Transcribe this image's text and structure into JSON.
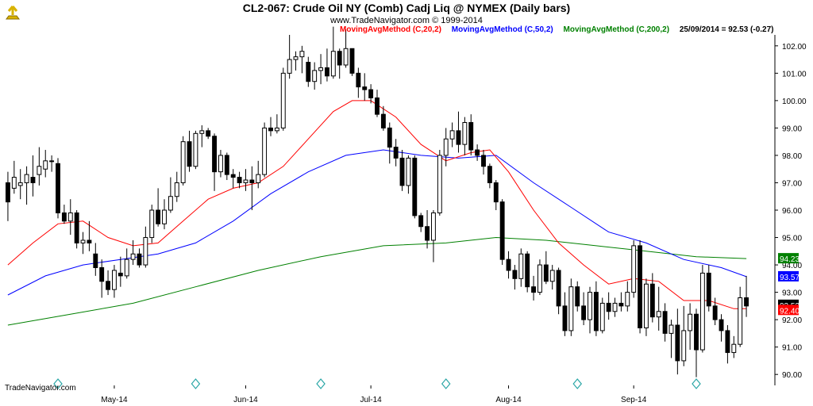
{
  "title": "CL2-067:  Crude Oil NY (Comb) Cadj Liq @ NYMEX  (Daily bars)",
  "copyright": "www.TradeNavigator.com © 1999-2014",
  "legend": {
    "ma20": "MovingAvgMethod (C,20,2)",
    "ma50": "MovingAvgMethod (C,50,2)",
    "ma200": "MovingAvgMethod (C,200,2)",
    "last": "25/09/2014 = 92.53 (-0.27)"
  },
  "watermark": "TradeNavigator.com",
  "colors": {
    "ma20": "#ff0000",
    "ma50": "#0000ff",
    "ma200": "#008000",
    "candle": "#000000",
    "tag20": "#ff0000",
    "tag50": "#0000ff",
    "tag200": "#008000"
  },
  "chart_data": {
    "type": "candlestick",
    "title": "CL2-067:  Crude Oil NY (Comb) Cadj Liq @ NYMEX  (Daily bars)",
    "ylim": [
      89.6,
      102.4
    ],
    "y_ticks": [
      90.0,
      91.0,
      92.0,
      93.0,
      94.0,
      95.0,
      96.0,
      97.0,
      98.0,
      99.0,
      100.0,
      101.0,
      102.0
    ],
    "x_labels": [
      {
        "label": "May-14",
        "index": 17
      },
      {
        "label": "Jun-14",
        "index": 38
      },
      {
        "label": "Jul-14",
        "index": 58
      },
      {
        "label": "Aug-14",
        "index": 80
      },
      {
        "label": "Sep-14",
        "index": 100
      }
    ],
    "last_value_tags": [
      {
        "series": "ma200",
        "value": 94.23
      },
      {
        "series": "ma50",
        "value": 93.57
      },
      {
        "series": "close",
        "value": 92.53
      },
      {
        "series": "ma20",
        "value": 92.4
      }
    ],
    "candles": [
      {
        "o": 97.0,
        "h": 97.4,
        "l": 95.6,
        "c": 96.3
      },
      {
        "o": 96.8,
        "h": 97.8,
        "l": 96.6,
        "c": 97.2
      },
      {
        "o": 96.9,
        "h": 97.5,
        "l": 96.4,
        "c": 97.0
      },
      {
        "o": 97.0,
        "h": 97.6,
        "l": 96.2,
        "c": 97.3
      },
      {
        "o": 97.2,
        "h": 98.0,
        "l": 96.5,
        "c": 97.0
      },
      {
        "o": 97.3,
        "h": 98.3,
        "l": 96.9,
        "c": 97.6
      },
      {
        "o": 97.5,
        "h": 98.2,
        "l": 97.2,
        "c": 97.8
      },
      {
        "o": 97.8,
        "h": 98.0,
        "l": 97.4,
        "c": 97.8
      },
      {
        "o": 97.7,
        "h": 97.9,
        "l": 95.7,
        "c": 95.9
      },
      {
        "o": 95.9,
        "h": 96.2,
        "l": 95.5,
        "c": 95.6
      },
      {
        "o": 95.6,
        "h": 96.4,
        "l": 95.1,
        "c": 95.9
      },
      {
        "o": 95.9,
        "h": 96.0,
        "l": 94.6,
        "c": 94.8
      },
      {
        "o": 94.8,
        "h": 95.2,
        "l": 94.4,
        "c": 94.9
      },
      {
        "o": 94.9,
        "h": 95.6,
        "l": 94.5,
        "c": 94.8
      },
      {
        "o": 94.4,
        "h": 94.8,
        "l": 93.6,
        "c": 93.9
      },
      {
        "o": 93.9,
        "h": 94.2,
        "l": 92.8,
        "c": 93.4
      },
      {
        "o": 93.4,
        "h": 93.8,
        "l": 92.9,
        "c": 93.1
      },
      {
        "o": 93.1,
        "h": 94.0,
        "l": 92.8,
        "c": 93.8
      },
      {
        "o": 93.7,
        "h": 94.3,
        "l": 93.2,
        "c": 93.6
      },
      {
        "o": 93.6,
        "h": 94.6,
        "l": 93.5,
        "c": 94.2
      },
      {
        "o": 94.2,
        "h": 94.9,
        "l": 94.0,
        "c": 94.4
      },
      {
        "o": 94.4,
        "h": 94.6,
        "l": 93.9,
        "c": 94.0
      },
      {
        "o": 94.0,
        "h": 95.4,
        "l": 93.9,
        "c": 95.0
      },
      {
        "o": 95.0,
        "h": 96.2,
        "l": 94.8,
        "c": 96.0
      },
      {
        "o": 96.0,
        "h": 96.8,
        "l": 95.4,
        "c": 95.5
      },
      {
        "o": 95.5,
        "h": 96.4,
        "l": 95.3,
        "c": 96.0
      },
      {
        "o": 96.0,
        "h": 97.2,
        "l": 95.9,
        "c": 96.5
      },
      {
        "o": 96.5,
        "h": 97.4,
        "l": 96.3,
        "c": 97.0
      },
      {
        "o": 97.0,
        "h": 98.7,
        "l": 96.9,
        "c": 98.5
      },
      {
        "o": 98.5,
        "h": 98.9,
        "l": 97.4,
        "c": 97.6
      },
      {
        "o": 97.6,
        "h": 98.9,
        "l": 97.5,
        "c": 98.8
      },
      {
        "o": 98.8,
        "h": 99.1,
        "l": 98.3,
        "c": 98.9
      },
      {
        "o": 98.9,
        "h": 99.0,
        "l": 98.6,
        "c": 98.7
      },
      {
        "o": 98.7,
        "h": 98.8,
        "l": 96.7,
        "c": 97.4
      },
      {
        "o": 97.4,
        "h": 98.2,
        "l": 97.2,
        "c": 98.0
      },
      {
        "o": 98.0,
        "h": 98.1,
        "l": 97.1,
        "c": 97.3
      },
      {
        "o": 97.3,
        "h": 97.5,
        "l": 96.8,
        "c": 97.2
      },
      {
        "o": 97.2,
        "h": 97.4,
        "l": 96.8,
        "c": 97.0
      },
      {
        "o": 97.0,
        "h": 97.5,
        "l": 96.7,
        "c": 97.1
      },
      {
        "o": 97.1,
        "h": 97.6,
        "l": 96.0,
        "c": 97.0
      },
      {
        "o": 97.0,
        "h": 97.8,
        "l": 96.8,
        "c": 97.3
      },
      {
        "o": 97.3,
        "h": 99.2,
        "l": 97.2,
        "c": 99.0
      },
      {
        "o": 99.0,
        "h": 99.4,
        "l": 98.7,
        "c": 98.9
      },
      {
        "o": 98.9,
        "h": 99.5,
        "l": 98.8,
        "c": 99.0
      },
      {
        "o": 99.0,
        "h": 101.2,
        "l": 98.9,
        "c": 101.0
      },
      {
        "o": 101.0,
        "h": 102.4,
        "l": 100.8,
        "c": 101.5
      },
      {
        "o": 101.5,
        "h": 101.8,
        "l": 101.1,
        "c": 101.6
      },
      {
        "o": 101.6,
        "h": 102.0,
        "l": 101.0,
        "c": 101.8
      },
      {
        "o": 101.4,
        "h": 101.6,
        "l": 100.5,
        "c": 100.7
      },
      {
        "o": 100.7,
        "h": 101.4,
        "l": 100.4,
        "c": 101.1
      },
      {
        "o": 101.1,
        "h": 101.7,
        "l": 100.6,
        "c": 101.2
      },
      {
        "o": 101.2,
        "h": 101.9,
        "l": 100.7,
        "c": 100.9
      },
      {
        "o": 100.9,
        "h": 102.7,
        "l": 100.8,
        "c": 101.8
      },
      {
        "o": 101.8,
        "h": 101.9,
        "l": 100.8,
        "c": 101.3
      },
      {
        "o": 101.3,
        "h": 102.6,
        "l": 101.2,
        "c": 101.9
      },
      {
        "o": 101.9,
        "h": 101.9,
        "l": 100.9,
        "c": 101.0
      },
      {
        "o": 101.0,
        "h": 101.2,
        "l": 100.1,
        "c": 100.5
      },
      {
        "o": 100.5,
        "h": 101.0,
        "l": 100.0,
        "c": 100.4
      },
      {
        "o": 100.4,
        "h": 100.6,
        "l": 99.9,
        "c": 100.1
      },
      {
        "o": 100.1,
        "h": 100.4,
        "l": 99.4,
        "c": 99.5
      },
      {
        "o": 99.5,
        "h": 99.8,
        "l": 98.9,
        "c": 99.0
      },
      {
        "o": 99.0,
        "h": 99.2,
        "l": 97.7,
        "c": 98.3
      },
      {
        "o": 98.3,
        "h": 98.6,
        "l": 97.6,
        "c": 97.9
      },
      {
        "o": 97.9,
        "h": 98.2,
        "l": 96.7,
        "c": 96.9
      },
      {
        "o": 96.9,
        "h": 98.0,
        "l": 96.6,
        "c": 97.9
      },
      {
        "o": 97.9,
        "h": 98.0,
        "l": 95.7,
        "c": 95.8
      },
      {
        "o": 95.8,
        "h": 95.9,
        "l": 95.2,
        "c": 95.4
      },
      {
        "o": 95.4,
        "h": 96.0,
        "l": 94.6,
        "c": 94.9
      },
      {
        "o": 94.9,
        "h": 96.0,
        "l": 94.1,
        "c": 95.9
      },
      {
        "o": 95.9,
        "h": 98.2,
        "l": 95.8,
        "c": 98.0
      },
      {
        "o": 98.0,
        "h": 99.0,
        "l": 97.6,
        "c": 98.6
      },
      {
        "o": 98.6,
        "h": 99.2,
        "l": 98.3,
        "c": 98.9
      },
      {
        "o": 98.9,
        "h": 99.6,
        "l": 98.1,
        "c": 98.4
      },
      {
        "o": 98.4,
        "h": 99.4,
        "l": 98.0,
        "c": 99.2
      },
      {
        "o": 99.2,
        "h": 99.5,
        "l": 98.0,
        "c": 98.2
      },
      {
        "o": 98.2,
        "h": 98.4,
        "l": 97.8,
        "c": 98.0
      },
      {
        "o": 98.0,
        "h": 98.2,
        "l": 97.3,
        "c": 97.6
      },
      {
        "o": 97.6,
        "h": 97.7,
        "l": 96.8,
        "c": 97.0
      },
      {
        "o": 97.0,
        "h": 97.1,
        "l": 96.0,
        "c": 96.3
      },
      {
        "o": 96.3,
        "h": 96.4,
        "l": 94.0,
        "c": 94.2
      },
      {
        "o": 94.2,
        "h": 94.5,
        "l": 93.5,
        "c": 93.8
      },
      {
        "o": 93.8,
        "h": 94.0,
        "l": 93.1,
        "c": 93.5
      },
      {
        "o": 93.5,
        "h": 94.6,
        "l": 93.2,
        "c": 94.4
      },
      {
        "o": 94.4,
        "h": 94.5,
        "l": 93.0,
        "c": 93.2
      },
      {
        "o": 93.2,
        "h": 93.6,
        "l": 92.7,
        "c": 93.0
      },
      {
        "o": 93.0,
        "h": 94.2,
        "l": 92.9,
        "c": 94.0
      },
      {
        "o": 94.0,
        "h": 94.5,
        "l": 93.3,
        "c": 93.4
      },
      {
        "o": 93.4,
        "h": 94.0,
        "l": 93.1,
        "c": 93.8
      },
      {
        "o": 93.8,
        "h": 93.9,
        "l": 92.2,
        "c": 92.5
      },
      {
        "o": 92.5,
        "h": 93.0,
        "l": 91.4,
        "c": 91.6
      },
      {
        "o": 91.6,
        "h": 93.5,
        "l": 91.4,
        "c": 93.2
      },
      {
        "o": 93.2,
        "h": 93.4,
        "l": 92.3,
        "c": 92.5
      },
      {
        "o": 92.5,
        "h": 93.0,
        "l": 91.8,
        "c": 92.0
      },
      {
        "o": 92.0,
        "h": 93.2,
        "l": 91.5,
        "c": 93.0
      },
      {
        "o": 93.0,
        "h": 93.4,
        "l": 91.4,
        "c": 91.6
      },
      {
        "o": 91.6,
        "h": 92.8,
        "l": 91.5,
        "c": 92.6
      },
      {
        "o": 92.6,
        "h": 93.0,
        "l": 92.0,
        "c": 92.3
      },
      {
        "o": 92.3,
        "h": 92.8,
        "l": 92.1,
        "c": 92.6
      },
      {
        "o": 92.6,
        "h": 93.0,
        "l": 92.3,
        "c": 92.5
      },
      {
        "o": 92.5,
        "h": 93.4,
        "l": 92.3,
        "c": 93.0
      },
      {
        "o": 93.0,
        "h": 94.9,
        "l": 92.8,
        "c": 94.7
      },
      {
        "o": 94.7,
        "h": 94.9,
        "l": 91.5,
        "c": 91.7
      },
      {
        "o": 91.7,
        "h": 93.5,
        "l": 91.4,
        "c": 93.3
      },
      {
        "o": 93.3,
        "h": 93.7,
        "l": 91.9,
        "c": 92.1
      },
      {
        "o": 92.1,
        "h": 93.2,
        "l": 91.6,
        "c": 92.3
      },
      {
        "o": 92.3,
        "h": 92.6,
        "l": 91.2,
        "c": 91.5
      },
      {
        "o": 91.5,
        "h": 92.0,
        "l": 90.6,
        "c": 91.8
      },
      {
        "o": 91.8,
        "h": 92.4,
        "l": 90.0,
        "c": 90.5
      },
      {
        "o": 90.5,
        "h": 92.5,
        "l": 90.3,
        "c": 91.6
      },
      {
        "o": 91.6,
        "h": 92.6,
        "l": 90.9,
        "c": 92.2
      },
      {
        "o": 92.2,
        "h": 92.4,
        "l": 89.9,
        "c": 90.9
      },
      {
        "o": 90.9,
        "h": 94.0,
        "l": 90.8,
        "c": 93.7
      },
      {
        "o": 93.7,
        "h": 94.0,
        "l": 92.3,
        "c": 92.5
      },
      {
        "o": 92.5,
        "h": 92.8,
        "l": 91.8,
        "c": 92.0
      },
      {
        "o": 92.0,
        "h": 92.2,
        "l": 91.2,
        "c": 91.6
      },
      {
        "o": 91.6,
        "h": 91.8,
        "l": 90.4,
        "c": 90.8
      },
      {
        "o": 90.8,
        "h": 91.4,
        "l": 90.6,
        "c": 91.1
      },
      {
        "o": 91.1,
        "h": 93.2,
        "l": 91.0,
        "c": 92.8
      },
      {
        "o": 92.8,
        "h": 93.6,
        "l": 92.1,
        "c": 92.5
      }
    ],
    "ma20": [
      {
        "i": 0,
        "v": 94.0
      },
      {
        "i": 4,
        "v": 94.8
      },
      {
        "i": 8,
        "v": 95.5
      },
      {
        "i": 12,
        "v": 95.6
      },
      {
        "i": 16,
        "v": 95.0
      },
      {
        "i": 20,
        "v": 94.7
      },
      {
        "i": 24,
        "v": 94.8
      },
      {
        "i": 28,
        "v": 95.6
      },
      {
        "i": 32,
        "v": 96.4
      },
      {
        "i": 36,
        "v": 96.8
      },
      {
        "i": 40,
        "v": 97.0
      },
      {
        "i": 44,
        "v": 97.6
      },
      {
        "i": 48,
        "v": 98.6
      },
      {
        "i": 52,
        "v": 99.6
      },
      {
        "i": 55,
        "v": 100.0
      },
      {
        "i": 58,
        "v": 100.0
      },
      {
        "i": 62,
        "v": 99.4
      },
      {
        "i": 66,
        "v": 98.4
      },
      {
        "i": 70,
        "v": 97.8
      },
      {
        "i": 74,
        "v": 98.1
      },
      {
        "i": 77,
        "v": 98.2
      },
      {
        "i": 80,
        "v": 97.4
      },
      {
        "i": 84,
        "v": 96.0
      },
      {
        "i": 88,
        "v": 94.8
      },
      {
        "i": 92,
        "v": 94.0
      },
      {
        "i": 96,
        "v": 93.3
      },
      {
        "i": 100,
        "v": 93.5
      },
      {
        "i": 104,
        "v": 93.4
      },
      {
        "i": 108,
        "v": 92.7
      },
      {
        "i": 112,
        "v": 92.7
      },
      {
        "i": 116,
        "v": 92.4
      },
      {
        "i": 118,
        "v": 92.4
      }
    ],
    "ma50": [
      {
        "i": 0,
        "v": 92.9
      },
      {
        "i": 6,
        "v": 93.6
      },
      {
        "i": 12,
        "v": 94.0
      },
      {
        "i": 18,
        "v": 94.2
      },
      {
        "i": 24,
        "v": 94.4
      },
      {
        "i": 30,
        "v": 94.8
      },
      {
        "i": 36,
        "v": 95.6
      },
      {
        "i": 42,
        "v": 96.6
      },
      {
        "i": 48,
        "v": 97.4
      },
      {
        "i": 54,
        "v": 98.0
      },
      {
        "i": 60,
        "v": 98.2
      },
      {
        "i": 66,
        "v": 98.0
      },
      {
        "i": 72,
        "v": 97.9
      },
      {
        "i": 78,
        "v": 98.0
      },
      {
        "i": 84,
        "v": 97.0
      },
      {
        "i": 90,
        "v": 96.1
      },
      {
        "i": 96,
        "v": 95.2
      },
      {
        "i": 102,
        "v": 94.8
      },
      {
        "i": 108,
        "v": 94.2
      },
      {
        "i": 114,
        "v": 93.9
      },
      {
        "i": 118,
        "v": 93.57
      }
    ],
    "ma200": [
      {
        "i": 0,
        "v": 91.8
      },
      {
        "i": 10,
        "v": 92.2
      },
      {
        "i": 20,
        "v": 92.6
      },
      {
        "i": 30,
        "v": 93.2
      },
      {
        "i": 40,
        "v": 93.8
      },
      {
        "i": 50,
        "v": 94.3
      },
      {
        "i": 60,
        "v": 94.7
      },
      {
        "i": 70,
        "v": 94.8
      },
      {
        "i": 78,
        "v": 95.0
      },
      {
        "i": 86,
        "v": 94.9
      },
      {
        "i": 94,
        "v": 94.7
      },
      {
        "i": 102,
        "v": 94.5
      },
      {
        "i": 110,
        "v": 94.3
      },
      {
        "i": 118,
        "v": 94.23
      }
    ]
  }
}
